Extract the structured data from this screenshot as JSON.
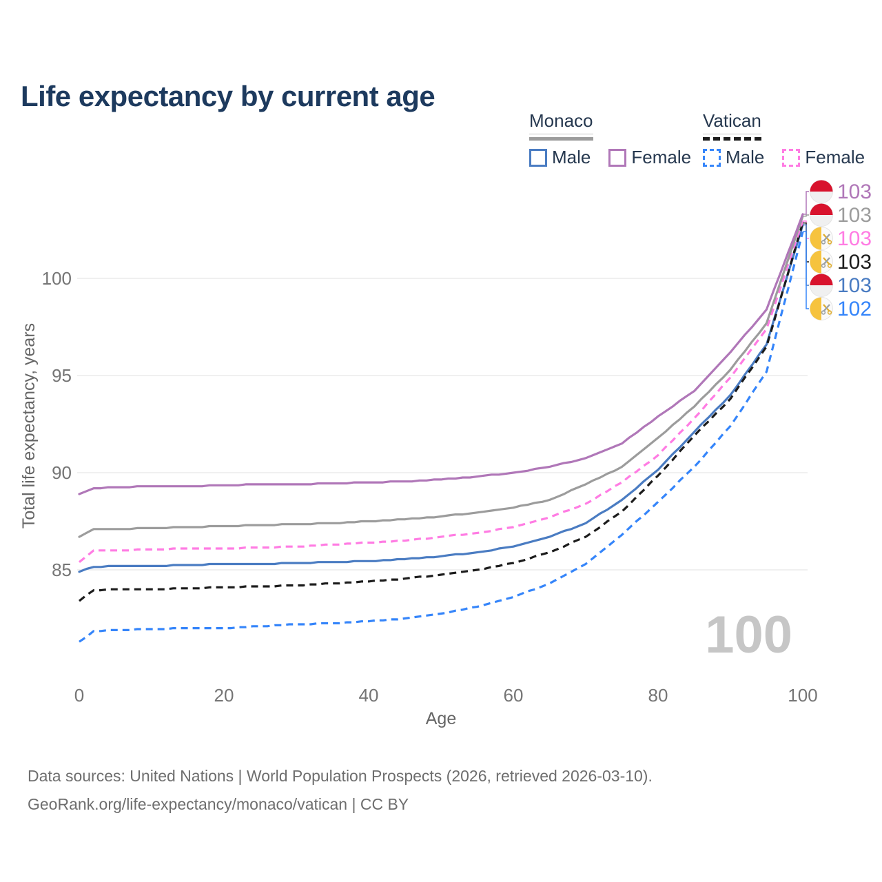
{
  "title": "Life expectancy by current age",
  "legend": {
    "groups": [
      {
        "label": "Monaco",
        "total_series_id": "monaco-total",
        "items": [
          {
            "label": "Male",
            "series_id": "monaco-male"
          },
          {
            "label": "Female",
            "series_id": "monaco-female"
          }
        ]
      },
      {
        "label": "Vatican",
        "total_series_id": "vatican-total",
        "items": [
          {
            "label": "Male",
            "series_id": "vatican-male"
          },
          {
            "label": "Female",
            "series_id": "vatican-female"
          }
        ]
      }
    ]
  },
  "chart_data": {
    "type": "line",
    "title": "Life expectancy by current age",
    "xlabel": "Age",
    "ylabel": "Total life expectancy, years",
    "x_ticks": [
      0,
      20,
      40,
      60,
      80,
      100
    ],
    "y_ticks": [
      85,
      90,
      95,
      100
    ],
    "xlim": [
      0,
      100
    ],
    "ylim": [
      80.5,
      104.5
    ],
    "grid": "horizontal",
    "legend_position": "top-right",
    "age_indicator": "100",
    "x": [
      0,
      2,
      5,
      10,
      15,
      20,
      25,
      30,
      35,
      40,
      45,
      50,
      55,
      60,
      65,
      70,
      75,
      80,
      85,
      90,
      95,
      100
    ],
    "series": [
      {
        "id": "monaco-female",
        "name": "Monaco Female",
        "country": "Monaco",
        "sex": "Female",
        "color": "#b077b8",
        "dash": false,
        "end_label": "103",
        "values": [
          88.9,
          89.2,
          89.25,
          89.3,
          89.3,
          89.35,
          89.4,
          89.4,
          89.45,
          89.5,
          89.55,
          89.65,
          89.8,
          90.0,
          90.3,
          90.75,
          91.5,
          92.9,
          94.2,
          96.2,
          98.4,
          103.3
        ]
      },
      {
        "id": "monaco-total",
        "name": "Monaco",
        "country": "Monaco",
        "sex": "Both",
        "color": "#9c9c9c",
        "dash": false,
        "end_label": "103",
        "values": [
          86.7,
          87.1,
          87.1,
          87.15,
          87.2,
          87.25,
          87.3,
          87.35,
          87.4,
          87.5,
          87.6,
          87.75,
          87.95,
          88.2,
          88.6,
          89.4,
          90.3,
          91.8,
          93.4,
          95.3,
          97.7,
          103.2
        ]
      },
      {
        "id": "vatican-female",
        "name": "Vatican Female",
        "country": "Vatican",
        "sex": "Female",
        "color": "#ff7ce3",
        "dash": true,
        "end_label": "103",
        "values": [
          85.4,
          86.0,
          86.0,
          86.05,
          86.1,
          86.1,
          86.15,
          86.2,
          86.3,
          86.4,
          86.5,
          86.7,
          86.9,
          87.2,
          87.7,
          88.4,
          89.5,
          90.9,
          92.8,
          94.9,
          97.4,
          102.95
        ]
      },
      {
        "id": "vatican-total",
        "name": "Vatican",
        "country": "Vatican",
        "sex": "Both",
        "color": "#1c1c1c",
        "dash": true,
        "end_label": "103",
        "values": [
          83.4,
          83.95,
          84.0,
          84.0,
          84.05,
          84.1,
          84.15,
          84.2,
          84.3,
          84.4,
          84.55,
          84.75,
          85.0,
          85.35,
          85.9,
          86.7,
          88.0,
          89.85,
          91.9,
          93.8,
          96.5,
          102.85
        ]
      },
      {
        "id": "monaco-male",
        "name": "Monaco Male",
        "country": "Monaco",
        "sex": "Male",
        "color": "#4a7cc2",
        "dash": false,
        "end_label": "103",
        "values": [
          84.9,
          85.15,
          85.2,
          85.2,
          85.25,
          85.3,
          85.3,
          85.35,
          85.4,
          85.45,
          85.55,
          85.7,
          85.9,
          86.2,
          86.7,
          87.4,
          88.6,
          90.15,
          92.1,
          94.0,
          96.6,
          102.75
        ]
      },
      {
        "id": "vatican-male",
        "name": "Vatican Male",
        "country": "Vatican",
        "sex": "Male",
        "color": "#3585fa",
        "dash": true,
        "end_label": "102",
        "values": [
          81.3,
          81.85,
          81.9,
          81.95,
          82.0,
          82.0,
          82.1,
          82.2,
          82.25,
          82.35,
          82.5,
          82.75,
          83.1,
          83.6,
          84.3,
          85.3,
          86.8,
          88.5,
          90.3,
          92.4,
          95.2,
          102.4
        ]
      }
    ]
  },
  "flags": {
    "monaco": {
      "red": "#d8132d",
      "white": "#f0f0f0"
    },
    "vatican": {
      "gold": "#f6c33e",
      "gold_dark": "#e0ae2e",
      "silver": "#9aa0a6",
      "white": "#fafafa"
    }
  },
  "colors": {
    "title": "#1d3a5e",
    "grid": "#ececec",
    "tick": "#757575",
    "watermark": "#c6c6c6",
    "footer": "#6e6e6e"
  },
  "footer": {
    "line1": "Data sources: United Nations | World Population Prospects (2026, retrieved 2026-03-10).",
    "line2": "GeoRank.org/life-expectancy/monaco/vatican | CC BY"
  }
}
